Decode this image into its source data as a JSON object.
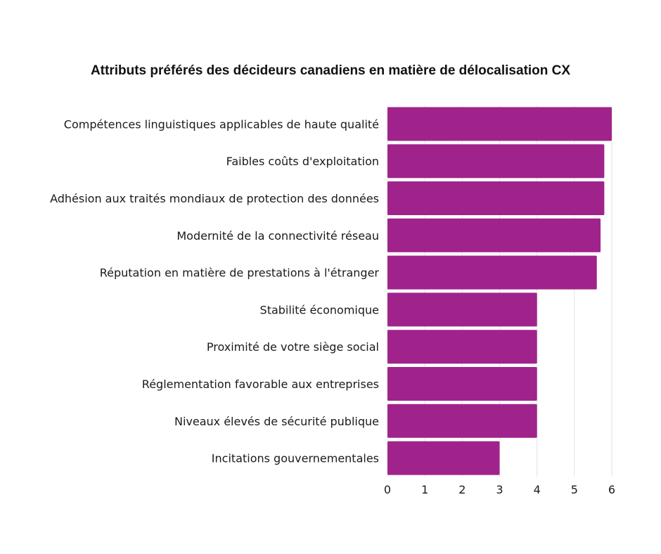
{
  "chart_data": {
    "type": "bar",
    "orientation": "horizontal",
    "title": "Attributs préférés des décideurs canadiens en matière de délocalisation CX",
    "xlabel": "",
    "ylabel": "",
    "categories": [
      "Compétences linguistiques applicables de haute qualité",
      "Faibles coûts d'exploitation",
      "Adhésion aux traités mondiaux de protection des données",
      "Modernité de la connectivité réseau",
      "Réputation en matière de prestations à l'étranger",
      "Stabilité économique",
      "Proximité de votre siège social",
      "Réglementation favorable aux entreprises",
      "Niveaux élevés de sécurité publique",
      "Incitations gouvernementales"
    ],
    "values": [
      6.0,
      5.8,
      5.8,
      5.7,
      5.6,
      4.0,
      4.0,
      4.0,
      4.0,
      3.0
    ],
    "xlim": [
      0,
      6
    ],
    "xticks": [
      "0",
      "1",
      "2",
      "3",
      "4",
      "5",
      "6"
    ],
    "grid": true,
    "bar_color": "#a0238c",
    "grid_color": "#e2e2e2"
  }
}
